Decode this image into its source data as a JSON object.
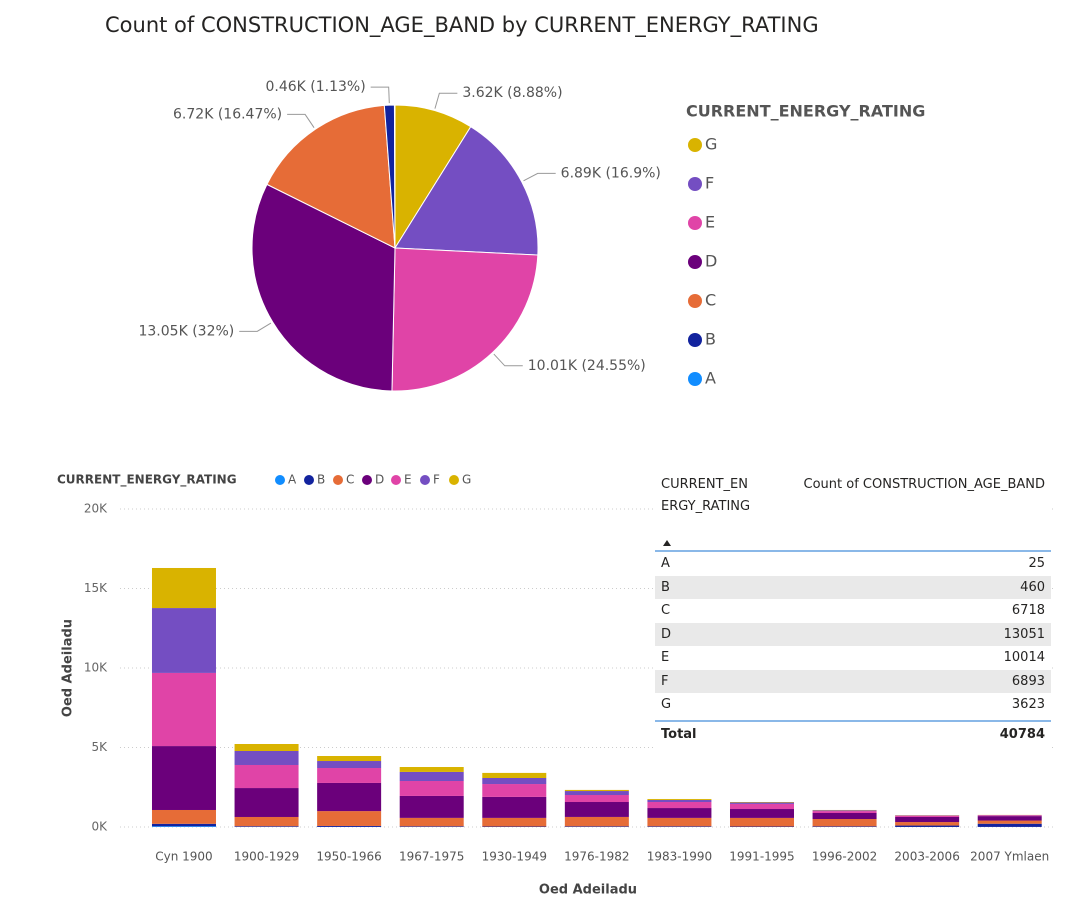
{
  "chart_data": [
    {
      "type": "pie",
      "title": "Count of CONSTRUCTION_AGE_BAND by CURRENT_ENERGY_RATING",
      "legend_title": "CURRENT_ENERGY_RATING",
      "categories": [
        "G",
        "F",
        "E",
        "D",
        "C",
        "B",
        "A"
      ],
      "values": [
        3623,
        6893,
        10014,
        13051,
        6718,
        460,
        25
      ],
      "value_labels": [
        "3.62K (8.88%)",
        "6.89K (16.9%)",
        "10.01K (24.55%)",
        "13.05K (32%)",
        "6.72K (16.47%)",
        "0.46K (1.13%)",
        null
      ],
      "colors": [
        "#d9b300",
        "#744ec2",
        "#e044a7",
        "#6b007b",
        "#e66c37",
        "#12239e",
        "#118dff"
      ],
      "legend": "right"
    },
    {
      "type": "stacked_bar",
      "legend_title": "CURRENT_ENERGY_RATING",
      "x_label": "Oed Adeiladu",
      "y_label": "Oed Adeiladu",
      "categories": [
        "Cyn 1900",
        "1900-1929",
        "1950-1966",
        "1967-1975",
        "1930-1949",
        "1976-1982",
        "1983-1990",
        "1991-1995",
        "1996-2002",
        "2003-2006",
        "2007 Ymlaen"
      ],
      "series": [
        {
          "name": "A",
          "color": "#118dff",
          "values": [
            50,
            5,
            5,
            3,
            2,
            2,
            2,
            1,
            1,
            1,
            5
          ]
        },
        {
          "name": "B",
          "color": "#12239e",
          "values": [
            150,
            45,
            60,
            40,
            30,
            40,
            40,
            30,
            40,
            90,
            200
          ]
        },
        {
          "name": "C",
          "color": "#e66c37",
          "values": [
            870,
            580,
            935,
            530,
            540,
            590,
            530,
            540,
            460,
            220,
            200
          ]
        },
        {
          "name": "D",
          "color": "#6b007b",
          "values": [
            4020,
            1820,
            1770,
            1380,
            1320,
            940,
            620,
            560,
            380,
            320,
            280
          ]
        },
        {
          "name": "E",
          "color": "#e044a7",
          "values": [
            4600,
            1450,
            940,
            940,
            810,
            440,
            380,
            320,
            120,
            80,
            50
          ]
        },
        {
          "name": "F",
          "color": "#744ec2",
          "values": [
            4080,
            880,
            440,
            570,
            380,
            250,
            130,
            90,
            50,
            25,
            15
          ]
        },
        {
          "name": "G",
          "color": "#d9b300",
          "values": [
            2520,
            440,
            315,
            310,
            320,
            70,
            60,
            30,
            20,
            15,
            10
          ]
        }
      ],
      "ylim": [
        0,
        20000
      ],
      "yticks": [
        {
          "value": 0,
          "label": "0K"
        },
        {
          "value": 5000,
          "label": "5K"
        },
        {
          "value": 10000,
          "label": "10K"
        },
        {
          "value": 15000,
          "label": "15K"
        },
        {
          "value": 20000,
          "label": "20K"
        }
      ],
      "grid": true,
      "legend": "top-left"
    }
  ],
  "table": {
    "header": [
      "CURRENT_ENERGY_RATING",
      "Count of CONSTRUCTION_AGE_BAND"
    ],
    "rows": [
      [
        "A",
        25
      ],
      [
        "B",
        460
      ],
      [
        "C",
        6718
      ],
      [
        "D",
        13051
      ],
      [
        "E",
        10014
      ],
      [
        "F",
        6893
      ],
      [
        "G",
        3623
      ]
    ],
    "total": [
      "Total",
      40784
    ]
  }
}
